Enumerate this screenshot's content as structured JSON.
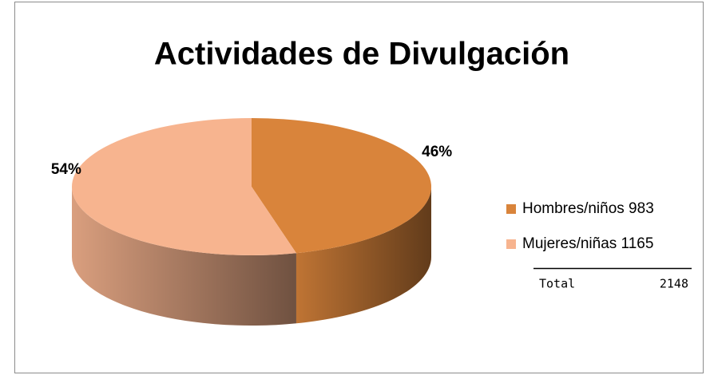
{
  "chart_data": {
    "type": "pie",
    "title": "Actividades de Divulgación",
    "categories": [
      "Hombres/niños 983",
      "Mujeres/niñas 1165"
    ],
    "values": [
      46,
      54
    ],
    "value_labels": [
      "46%",
      "54%"
    ],
    "colors": [
      "#d9843b",
      "#f7b48f"
    ],
    "legend": "right",
    "total": {
      "label": "Total",
      "value": 2148
    }
  }
}
